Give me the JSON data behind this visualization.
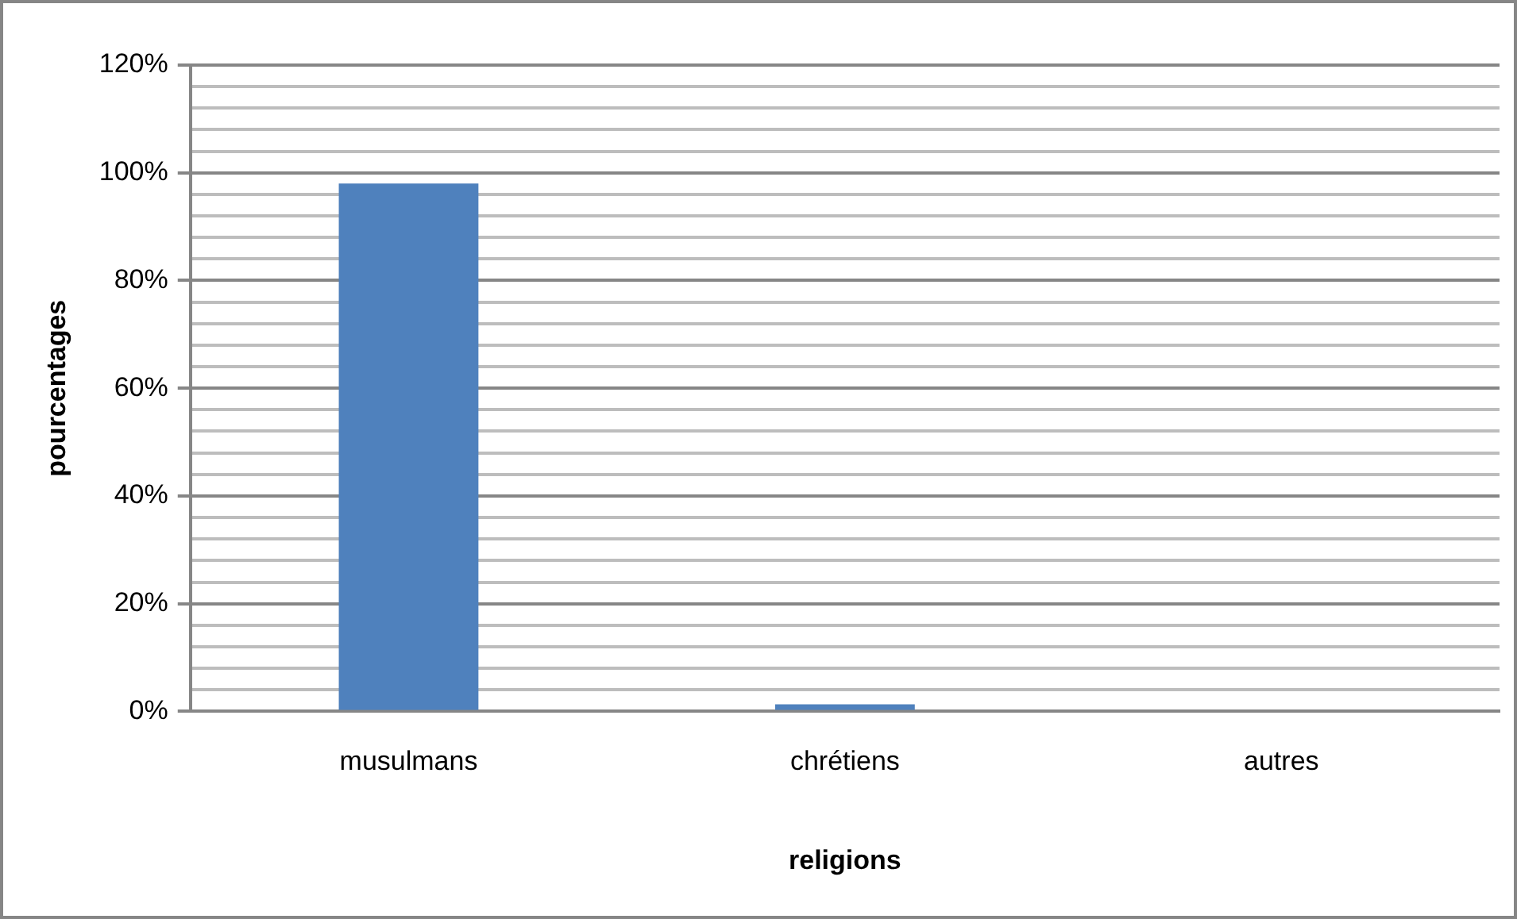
{
  "chart_data": {
    "type": "bar",
    "xlabel": "religions",
    "ylabel": "pourcentages",
    "categories": [
      "musulmans",
      "chrétiens",
      "autres"
    ],
    "values": [
      98,
      1.3,
      0
    ],
    "color": "#4f81bd",
    "ylim": [
      0,
      120
    ],
    "yticks": [
      {
        "value": 0,
        "label": "0%"
      },
      {
        "value": 4,
        "label": null
      },
      {
        "value": 8,
        "label": null
      },
      {
        "value": 12,
        "label": null
      },
      {
        "value": 16,
        "label": null
      },
      {
        "value": 20,
        "label": "20%"
      },
      {
        "value": 24,
        "label": null
      },
      {
        "value": 28,
        "label": null
      },
      {
        "value": 32,
        "label": null
      },
      {
        "value": 36,
        "label": null
      },
      {
        "value": 40,
        "label": "40%"
      },
      {
        "value": 44,
        "label": null
      },
      {
        "value": 48,
        "label": null
      },
      {
        "value": 52,
        "label": null
      },
      {
        "value": 56,
        "label": null
      },
      {
        "value": 60,
        "label": "60%"
      },
      {
        "value": 64,
        "label": null
      },
      {
        "value": 68,
        "label": null
      },
      {
        "value": 72,
        "label": null
      },
      {
        "value": 76,
        "label": null
      },
      {
        "value": 80,
        "label": "80%"
      },
      {
        "value": 84,
        "label": null
      },
      {
        "value": 88,
        "label": null
      },
      {
        "value": 92,
        "label": null
      },
      {
        "value": 96,
        "label": null
      },
      {
        "value": 100,
        "label": "100%"
      },
      {
        "value": 104,
        "label": null
      },
      {
        "value": 108,
        "label": null
      },
      {
        "value": 112,
        "label": null
      },
      {
        "value": 116,
        "label": null
      },
      {
        "value": 120,
        "label": "120%"
      }
    ],
    "grid": "y",
    "legend": false
  }
}
